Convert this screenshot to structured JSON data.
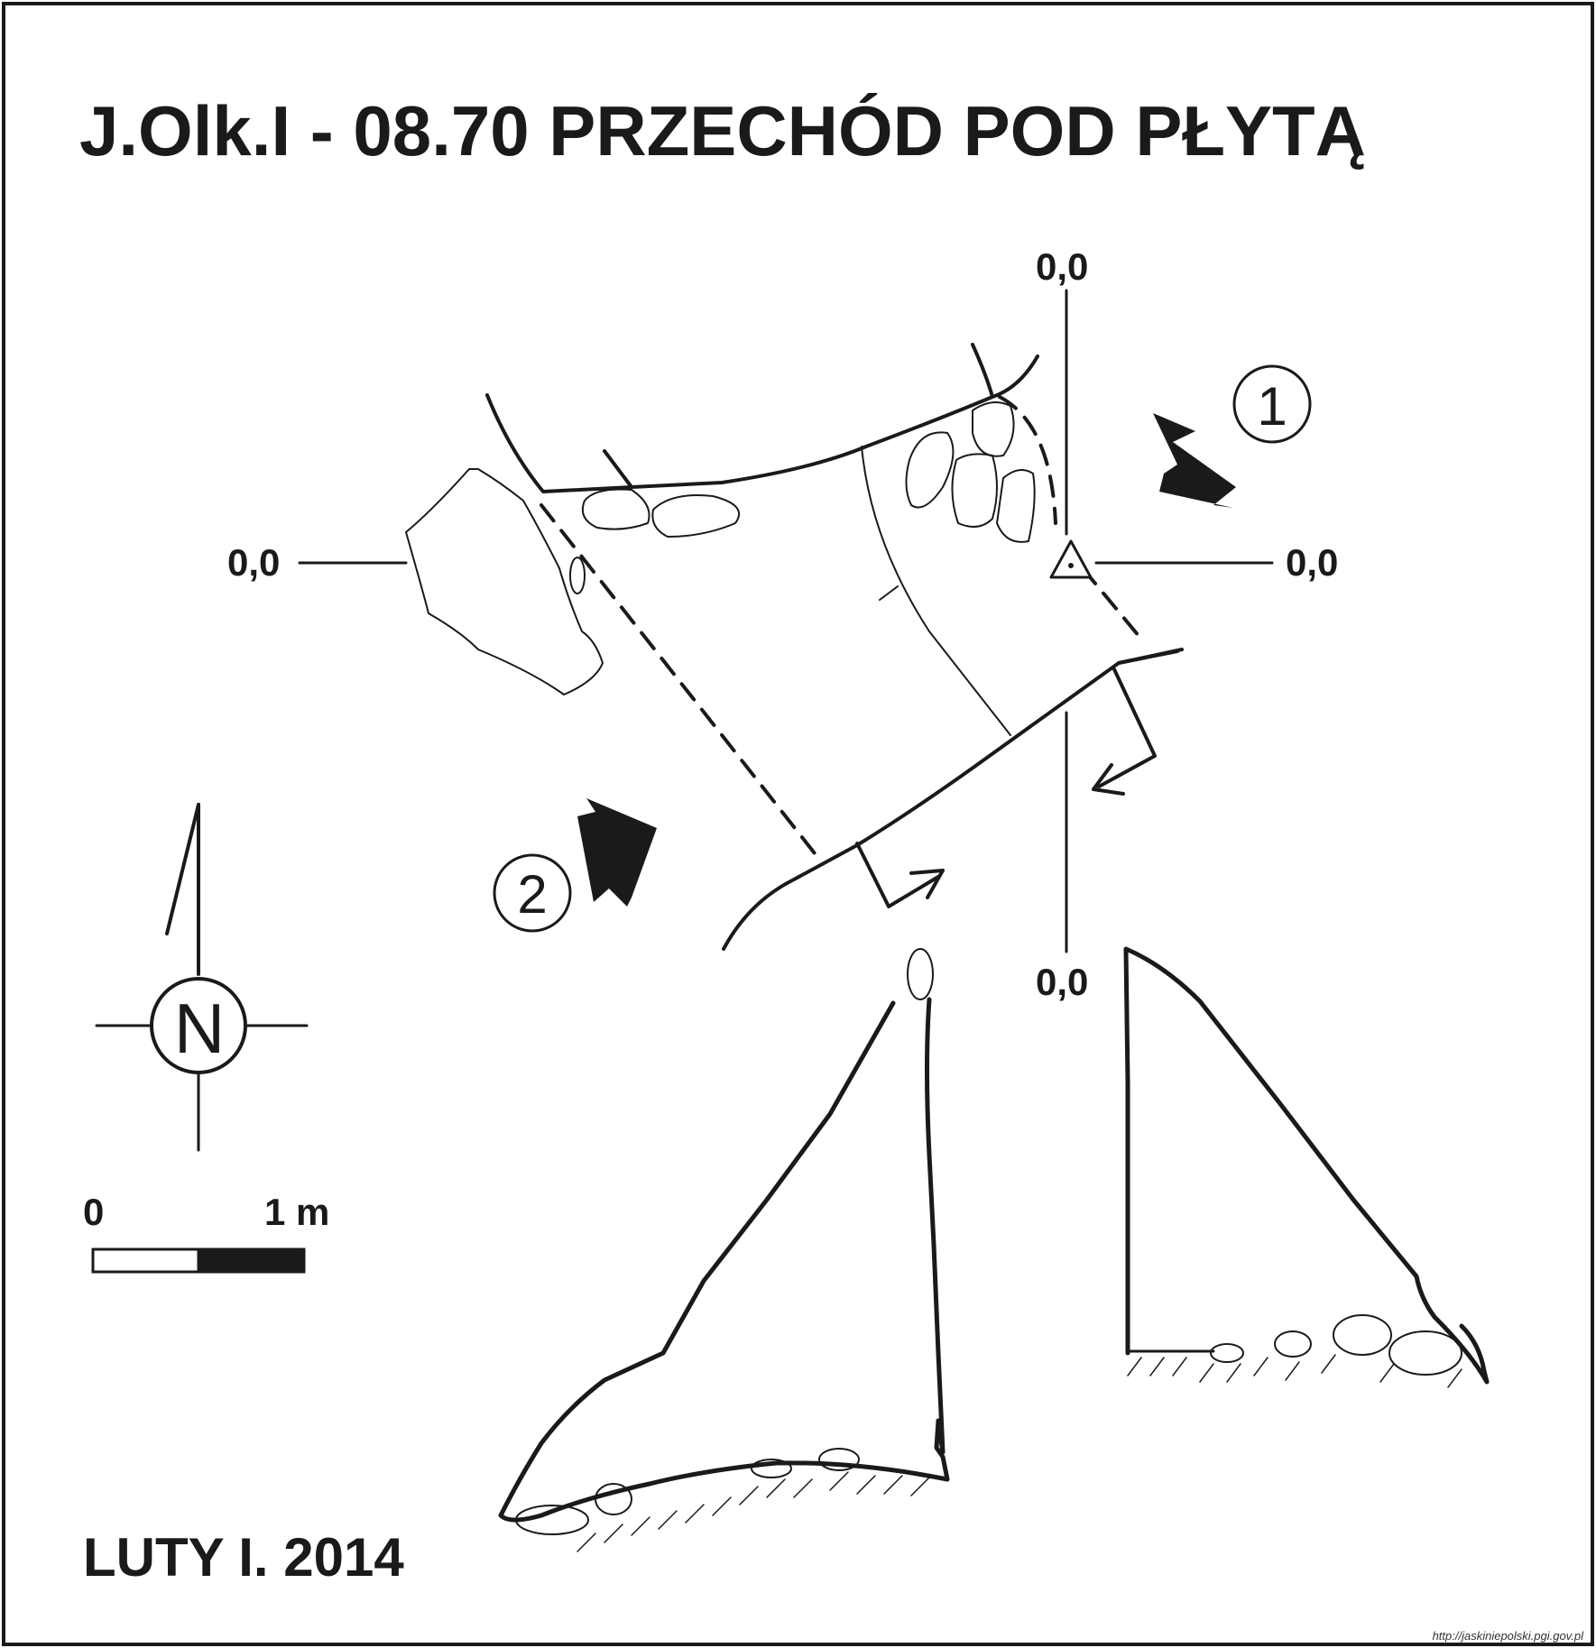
{
  "title": "J.Olk.I - 08.70  PRZECHÓD POD PŁYTĄ",
  "author_date": "LUTY I. 2014",
  "credit_url": "http://jaskiniepolski.pgi.gov.pl",
  "section_labels": {
    "top": "0,0",
    "left": "0,0",
    "right": "0,0",
    "bottom": "0,0"
  },
  "entrances": [
    {
      "number": "1"
    },
    {
      "number": "2"
    }
  ],
  "north_arrow": {
    "letter": "N"
  },
  "scale_bar": {
    "start_label": "0",
    "end_label": "1 m"
  },
  "colors": {
    "ink": "#1a1a1a",
    "paper": "#ffffff"
  }
}
